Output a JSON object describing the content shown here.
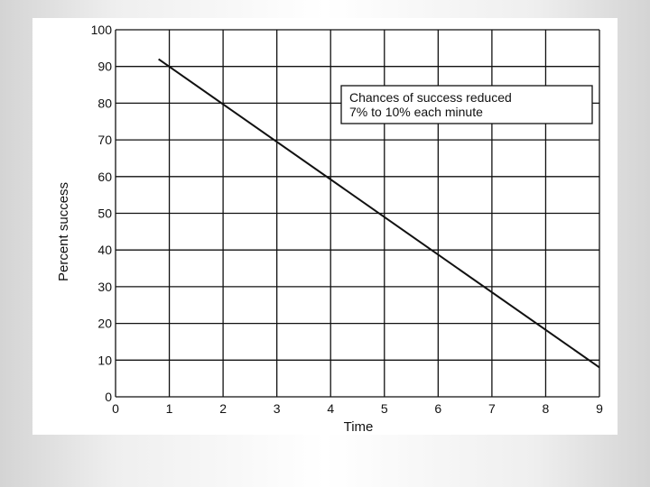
{
  "page_background": "#e6e6e6",
  "panel_background": "#ffffff",
  "chart_data": {
    "type": "line",
    "title": "",
    "xlabel": "Time",
    "ylabel": "Percent success",
    "xlim": [
      0,
      9
    ],
    "ylim": [
      0,
      100
    ],
    "x_ticks": [
      0,
      1,
      2,
      3,
      4,
      5,
      6,
      7,
      8,
      9
    ],
    "y_ticks": [
      0,
      10,
      20,
      30,
      40,
      50,
      60,
      70,
      80,
      90,
      100
    ],
    "grid": true,
    "series": [
      {
        "x": [
          0.8,
          9
        ],
        "y": [
          92,
          8
        ],
        "color": "#111111"
      }
    ],
    "annotations": [
      {
        "lines": [
          "Chances of success reduced",
          "7% to 10% each minute"
        ],
        "position": "top-right",
        "boxed": true
      }
    ]
  }
}
